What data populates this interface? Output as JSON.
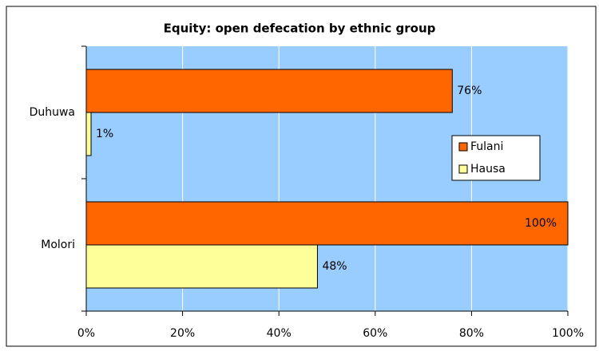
{
  "chart_data": {
    "type": "barh",
    "title": "Equity: open defecation by ethnic group",
    "categories": [
      "Duhuwa",
      "Molori"
    ],
    "series": [
      {
        "name": "Fulani",
        "color": "#ff6600",
        "values": [
          76,
          100
        ],
        "value_labels": [
          "76%",
          "100%"
        ]
      },
      {
        "name": "Hausa",
        "color": "#ffff99",
        "values": [
          1,
          48
        ],
        "value_labels": [
          "1%",
          "48%"
        ]
      }
    ],
    "xlim": [
      0,
      100
    ],
    "xticks": [
      {
        "value": 0,
        "label": "0%"
      },
      {
        "value": 20,
        "label": "20%"
      },
      {
        "value": 40,
        "label": "40%"
      },
      {
        "value": 60,
        "label": "60%"
      },
      {
        "value": 80,
        "label": "80%"
      },
      {
        "value": 100,
        "label": "100%"
      }
    ],
    "grid": true,
    "plot_background": "#99ccff",
    "legend": "right"
  }
}
